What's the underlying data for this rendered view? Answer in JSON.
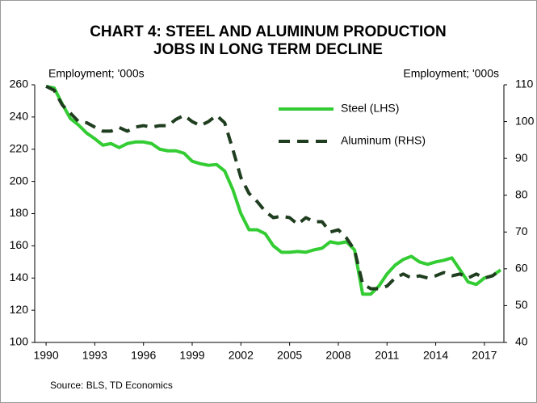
{
  "chart_data": {
    "type": "line",
    "title": [
      "CHART 4: STEEL AND ALUMINUM PRODUCTION",
      "JOBS IN LONG TERM DECLINE"
    ],
    "ylabel": "Employment; '000s",
    "y2label": "Employment; '000s",
    "source": "Source: BLS, TD Economics",
    "x": [
      1990,
      1990.5,
      1991,
      1991.5,
      1992,
      1992.5,
      1993,
      1993.5,
      1994,
      1994.5,
      1995,
      1995.5,
      1996,
      1996.5,
      1997,
      1997.5,
      1998,
      1998.5,
      1999,
      1999.5,
      2000,
      2000.5,
      2001,
      2001.5,
      2002,
      2002.5,
      2003,
      2003.5,
      2004,
      2004.5,
      2005,
      2005.5,
      2006,
      2006.5,
      2007,
      2007.5,
      2008,
      2008.5,
      2009,
      2009.5,
      2010,
      2010.5,
      2011,
      2011.5,
      2012,
      2012.5,
      2013,
      2013.5,
      2014,
      2014.5,
      2015,
      2015.5,
      2016,
      2016.5,
      2017,
      2017.5,
      2018
    ],
    "series": [
      {
        "name": "Steel (LHS)",
        "color": "#33cc33",
        "axis": "y",
        "values": [
          259,
          258,
          248,
          239,
          235,
          230,
          226.5,
          222.5,
          223.5,
          221,
          223.5,
          224.5,
          224.5,
          223.5,
          220,
          219,
          219,
          217.5,
          212.5,
          211,
          210,
          210.5,
          206.5,
          195,
          180,
          170,
          170,
          167.5,
          160,
          156,
          156,
          156.5,
          156,
          157.5,
          158.5,
          162.5,
          161.5,
          162.5,
          157.5,
          130,
          130,
          135,
          142.5,
          148,
          151.5,
          153.5,
          150,
          148.5,
          150,
          151,
          152.5,
          145,
          137.5,
          136,
          140,
          141.5,
          145
        ]
      },
      {
        "name": "Aluminum (RHS)",
        "color": "#1f3d1f",
        "axis": "y2",
        "values": [
          109.6,
          108.5,
          104.5,
          102.3,
          100,
          99.7,
          98.5,
          97.4,
          97.4,
          98.4,
          97.4,
          98.5,
          98.9,
          98.5,
          98.9,
          98.9,
          100.6,
          101.7,
          100,
          98.9,
          100,
          101.7,
          99.7,
          92.5,
          84.8,
          80.5,
          78.3,
          75.6,
          73.9,
          74.3,
          73.9,
          72.1,
          73.9,
          72.8,
          72.8,
          70,
          70.6,
          68.4,
          65.1,
          55.9,
          54.6,
          54.6,
          55.3,
          57.5,
          58.6,
          57.5,
          58.1,
          57.5,
          58.1,
          59,
          58.1,
          58.6,
          57.5,
          58.6,
          57.5,
          58.1,
          59.7
        ]
      }
    ],
    "xlim": [
      1989.3,
      2018.2
    ],
    "xticks": [
      1990,
      1993,
      1996,
      1999,
      2002,
      2005,
      2008,
      2011,
      2014,
      2017
    ],
    "ylim": [
      100,
      260
    ],
    "yticks": [
      100,
      120,
      140,
      160,
      180,
      200,
      220,
      240,
      260
    ],
    "y2lim": [
      40,
      110
    ],
    "y2ticks": [
      40,
      50,
      60,
      70,
      80,
      90,
      100,
      110
    ],
    "legend": "top-right"
  }
}
